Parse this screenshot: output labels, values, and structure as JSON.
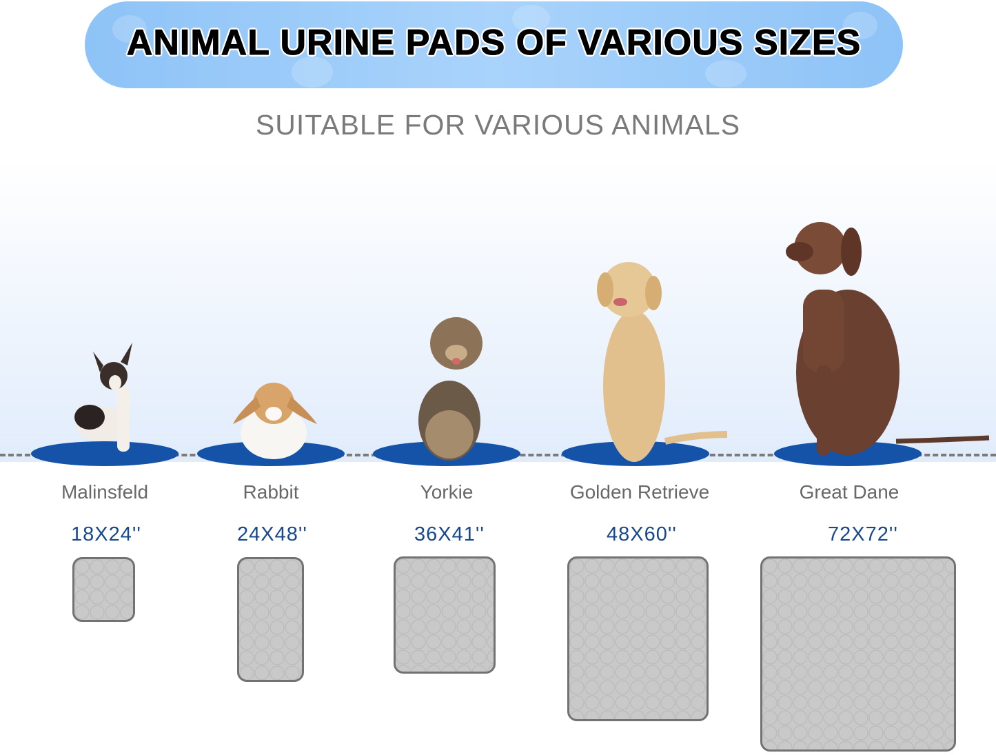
{
  "header": {
    "title": "ANIMAL URINE PADS OF VARIOUS SIZES",
    "subtitle": "SUITABLE FOR VARIOUS ANIMALS"
  },
  "colors": {
    "banner": "#9ecbf7",
    "mat": "#1553a8",
    "size_text": "#17488e",
    "pad": "#c9c9c9"
  },
  "animals": [
    {
      "name": "Malinsfeld",
      "size": "18X24''"
    },
    {
      "name": "Rabbit",
      "size": "24X48''"
    },
    {
      "name": "Yorkie",
      "size": "36X41''"
    },
    {
      "name": "Golden Retrieve",
      "size": "48X60''"
    },
    {
      "name": "Great Dane",
      "size": "72X72''"
    }
  ]
}
